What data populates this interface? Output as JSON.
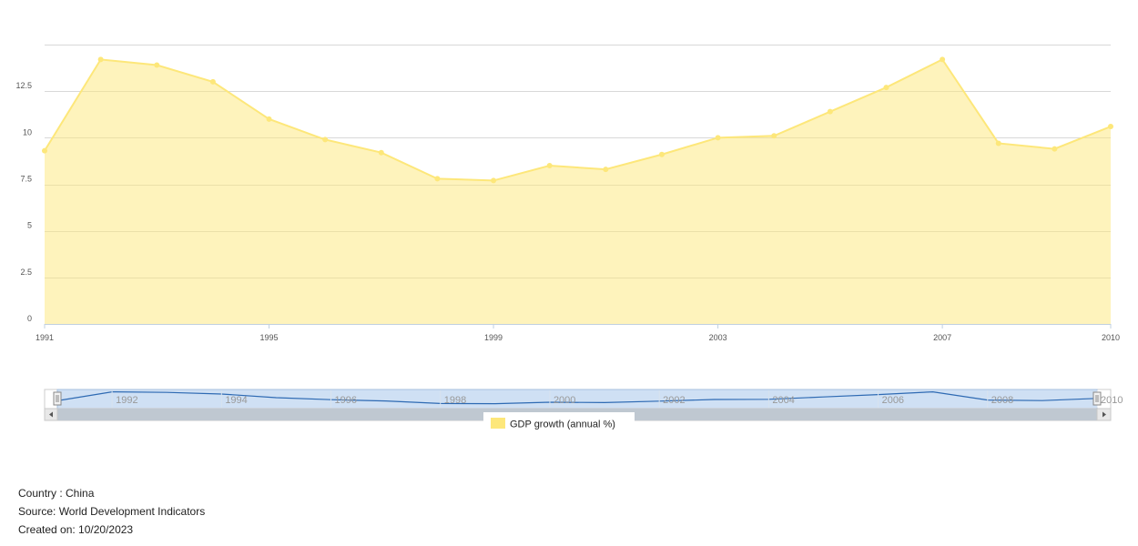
{
  "chart_data": {
    "type": "area",
    "x": [
      "1991",
      "1992",
      "1993",
      "1994",
      "1995",
      "1996",
      "1997",
      "1998",
      "1999",
      "2000",
      "2001",
      "2002",
      "2003",
      "2004",
      "2005",
      "2006",
      "2007",
      "2008",
      "2009",
      "2010"
    ],
    "series": [
      {
        "name": "GDP growth (annual %)",
        "color": "#fde77a",
        "values": [
          9.3,
          14.2,
          13.9,
          13.0,
          11.0,
          9.9,
          9.2,
          7.8,
          7.7,
          8.5,
          8.3,
          9.1,
          10.0,
          10.1,
          11.4,
          12.7,
          14.2,
          9.7,
          9.4,
          10.6
        ]
      }
    ],
    "ylim": [
      0,
      15
    ],
    "yticks": [
      0,
      2.5,
      5,
      7.5,
      10,
      12.5
    ],
    "ytick_labels": [
      "0",
      "2.5",
      "5",
      "7.5",
      "10",
      "12.5"
    ],
    "xtick_labels": [
      "1991",
      "1995",
      "1999",
      "2003",
      "2007",
      "2010"
    ],
    "grid": true,
    "legend_position": "bottom",
    "navigator": {
      "labels": [
        "1992",
        "1994",
        "1996",
        "1998",
        "2000",
        "2002",
        "2004",
        "2006",
        "2008",
        "2010"
      ],
      "line_color": "#2e6ab3",
      "fill_color": "#cfe0f4"
    }
  },
  "footer": {
    "country": "Country : China",
    "source": "Source: World Development Indicators",
    "created": "Created on: 10/20/2023"
  }
}
